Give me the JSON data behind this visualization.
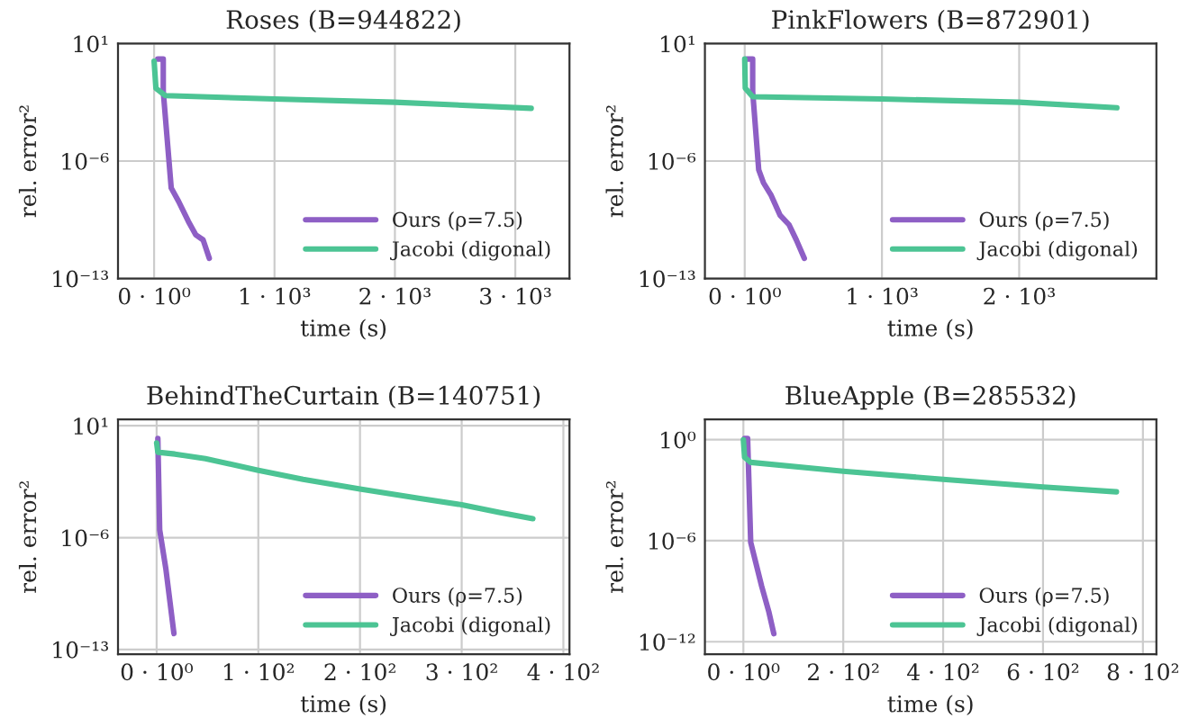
{
  "chart_data": [
    {
      "type": "line",
      "title": "Roses (B=944822)",
      "xlabel": "time (s)",
      "ylabel": "rel. error²",
      "log": "y",
      "grid": true,
      "legend": "bottom right",
      "xlim": [
        -300,
        3450
      ],
      "xticks": [
        {
          "value": 0,
          "label": "0 · 10⁰"
        },
        {
          "value": 1000,
          "label": "1 · 10³"
        },
        {
          "value": 2000,
          "label": "2 · 10³"
        },
        {
          "value": 3000,
          "label": "3 · 10³"
        }
      ],
      "ylim": [
        1e-13,
        10
      ],
      "yticks": [
        {
          "value": 10,
          "label": "10¹"
        },
        {
          "value": 1e-06,
          "label": "10⁻⁶"
        },
        {
          "value": 1e-13,
          "label": "10⁻¹³"
        }
      ],
      "series": [
        {
          "name": "Ours (ρ=7.5)",
          "color": "#8e5fc5",
          "x": [
            30,
            76,
            76,
            142,
            203,
            285,
            346,
            407,
            458
          ],
          "values": [
            1.2,
            1.2,
            0.014,
            2.5e-08,
            4e-09,
            2.5e-10,
            4e-11,
            2e-11,
            1.6e-12
          ]
        },
        {
          "name": "Jacobi (digonal)",
          "color": "#4cc494",
          "x": [
            0,
            15,
            92,
            1000,
            2000,
            3132
          ],
          "values": [
            0.9,
            0.022,
            0.008,
            0.005,
            0.0032,
            0.0014
          ]
        }
      ]
    },
    {
      "type": "line",
      "title": "PinkFlowers (B=872901)",
      "xlabel": "time (s)",
      "ylabel": "rel. error²",
      "log": "y",
      "grid": true,
      "legend": "bottom right",
      "xlim": [
        -290,
        3000
      ],
      "xticks": [
        {
          "value": 0,
          "label": "0 · 10⁰"
        },
        {
          "value": 1000,
          "label": "1 · 10³"
        },
        {
          "value": 2000,
          "label": "2 · 10³"
        }
      ],
      "ylim": [
        1e-13,
        10
      ],
      "yticks": [
        {
          "value": 10,
          "label": "10¹"
        },
        {
          "value": 1e-06,
          "label": "10⁻⁶"
        },
        {
          "value": 1e-13,
          "label": "10⁻¹³"
        }
      ],
      "series": [
        {
          "name": "Ours (ρ=7.5)",
          "color": "#8e5fc5",
          "x": [
            13,
            58,
            58,
            102,
            137,
            190,
            257,
            323,
            376,
            434
          ],
          "values": [
            1.2,
            1.2,
            0.014,
            3e-07,
            5e-08,
            1e-08,
            6e-10,
            1.6e-10,
            2e-11,
            1.6e-12
          ]
        },
        {
          "name": "Jacobi (digonal)",
          "color": "#4cc494",
          "x": [
            0,
            4,
            58,
            1000,
            2000,
            2712
          ],
          "values": [
            1.2,
            0.022,
            0.0068,
            0.005,
            0.0032,
            0.0015
          ]
        }
      ]
    },
    {
      "type": "line",
      "title": "BehindTheCurtain (B=140751)",
      "xlabel": "time (s)",
      "ylabel": "rel. error²",
      "log": "y",
      "grid": true,
      "legend": "bottom right",
      "xlim": [
        -38,
        406
      ],
      "xticks": [
        {
          "value": 0,
          "label": "0 · 10⁰"
        },
        {
          "value": 100,
          "label": "1 · 10²"
        },
        {
          "value": 200,
          "label": "2 · 10²"
        },
        {
          "value": 300,
          "label": "3 · 10²"
        },
        {
          "value": 400,
          "label": "4 · 10²"
        }
      ],
      "ylim": [
        5e-14,
        25
      ],
      "yticks": [
        {
          "value": 10,
          "label": "10¹"
        },
        {
          "value": 1e-06,
          "label": "10⁻⁶"
        },
        {
          "value": 1e-13,
          "label": "10⁻¹³"
        }
      ],
      "series": [
        {
          "name": "Ours (ρ=7.5)",
          "color": "#8e5fc5",
          "x": [
            1.2,
            3,
            9,
            17
          ],
          "values": [
            1.6,
            3e-06,
            1.2e-08,
            1e-12
          ]
        },
        {
          "name": "Jacobi (digonal)",
          "color": "#4cc494",
          "x": [
            0,
            1.2,
            18,
            48,
            99,
            144,
            200,
            259,
            300,
            337,
            370
          ],
          "values": [
            0.85,
            0.22,
            0.17,
            0.087,
            0.017,
            0.0044,
            0.0011,
            0.00028,
            0.000115,
            3.8e-05,
            1.55e-05
          ]
        }
      ]
    },
    {
      "type": "line",
      "title": "BlueApple (B=285532)",
      "xlabel": "time (s)",
      "ylabel": "rel. error²",
      "log": "y",
      "grid": true,
      "legend": "bottom right",
      "xlim": [
        -77,
        827
      ],
      "xticks": [
        {
          "value": 0,
          "label": "0 · 10⁰"
        },
        {
          "value": 200,
          "label": "2 · 10²"
        },
        {
          "value": 400,
          "label": "4 · 10²"
        },
        {
          "value": 600,
          "label": "6 · 10²"
        },
        {
          "value": 800,
          "label": "8 · 10²"
        }
      ],
      "ylim": [
        1.8e-13,
        16
      ],
      "yticks": [
        {
          "value": 1,
          "label": "10⁰"
        },
        {
          "value": 1e-06,
          "label": "10⁻⁶"
        },
        {
          "value": 1e-12,
          "label": "10⁻¹²"
        }
      ],
      "series": [
        {
          "name": "Ours (ρ=7.5)",
          "color": "#8e5fc5",
          "x": [
            2.4,
            8.5,
            14.7,
            36.6,
            51,
            61
          ],
          "values": [
            1.2,
            1.2,
            8e-07,
            2e-09,
            6e-11,
            3e-12
          ]
        },
        {
          "name": "Jacobi (digonal)",
          "color": "#4cc494",
          "x": [
            0,
            2.4,
            14.7,
            200,
            400,
            600,
            747
          ],
          "values": [
            1,
            0.09,
            0.045,
            0.0135,
            0.0044,
            0.00155,
            0.0008
          ]
        }
      ]
    }
  ]
}
